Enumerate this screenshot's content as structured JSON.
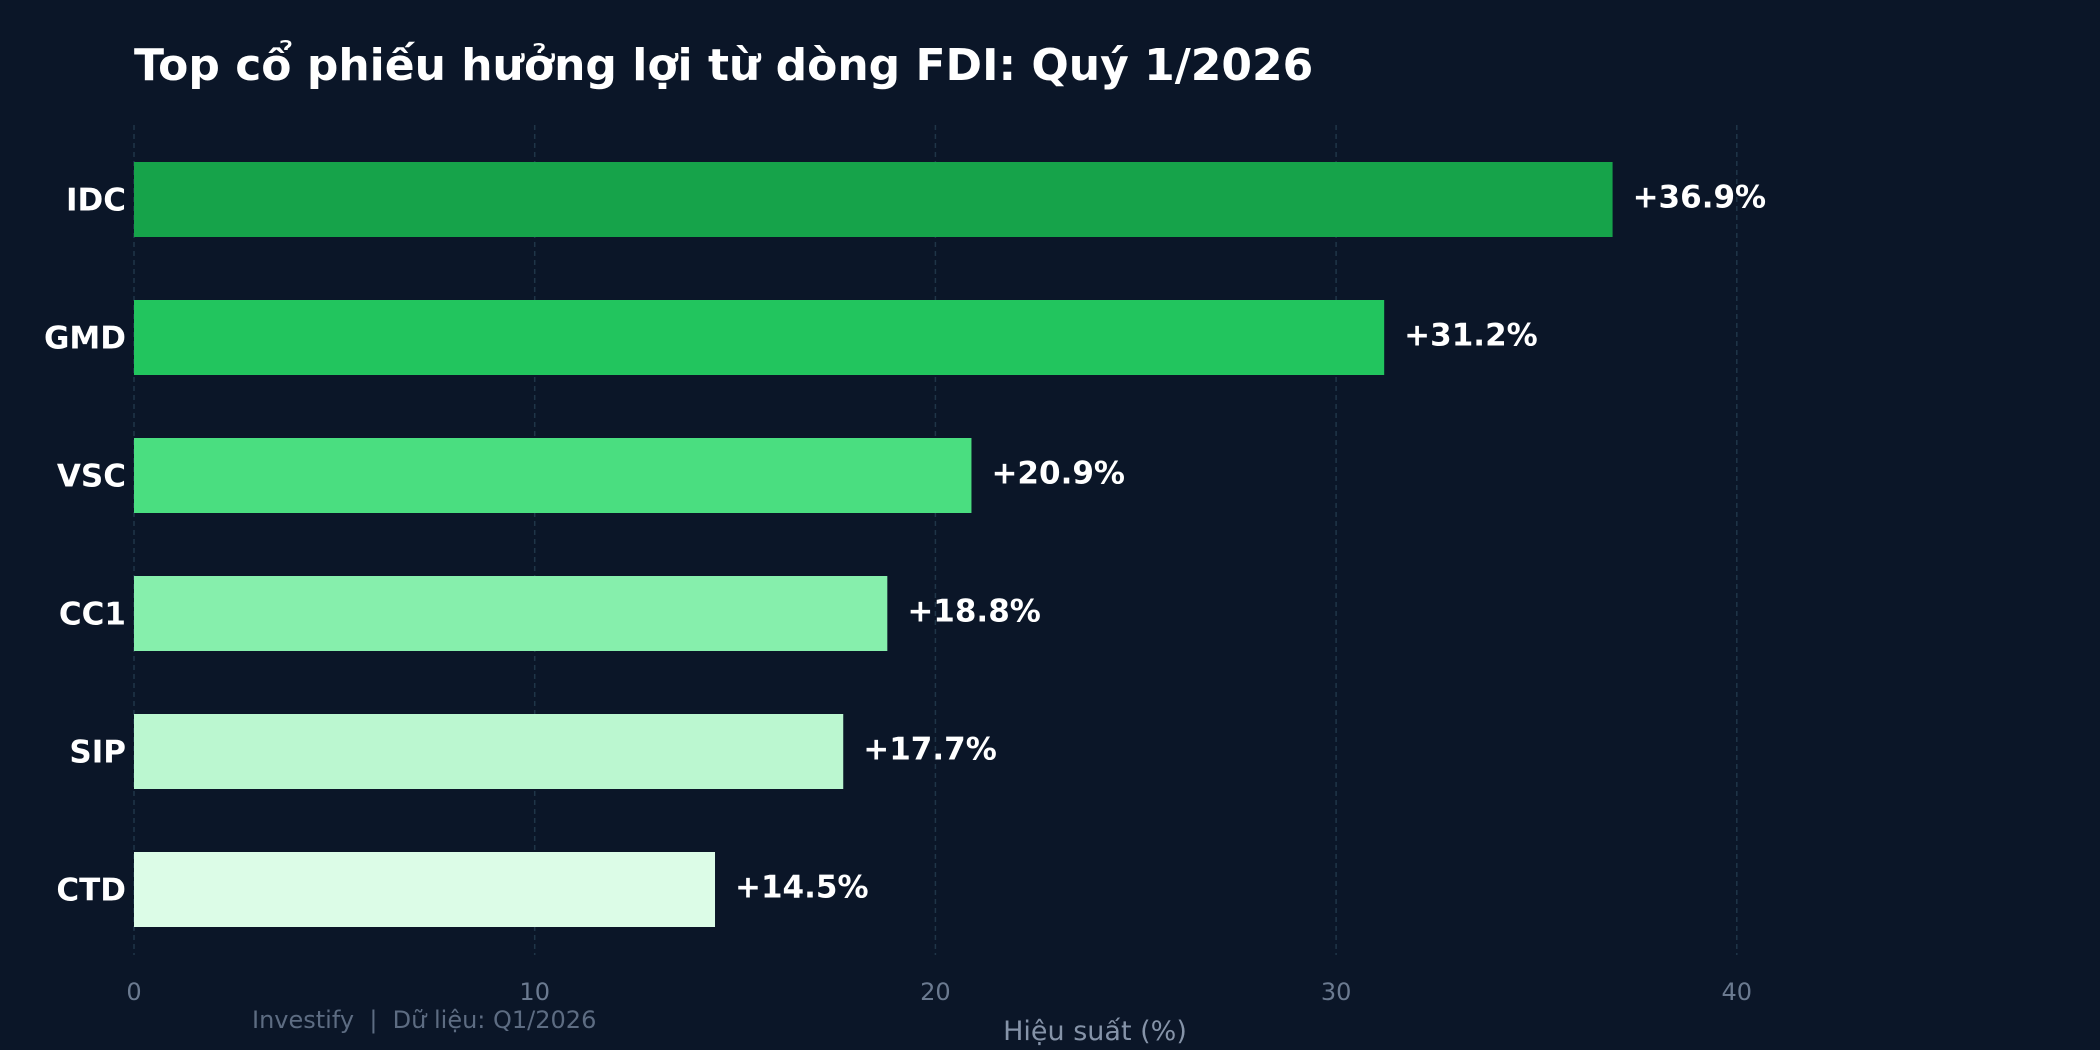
{
  "chart_data": {
    "type": "bar",
    "orientation": "horizontal",
    "title": "Top cổ phiếu hưởng lợi từ dòng FDI: Quý 1/2026",
    "categories": [
      "IDC",
      "GMD",
      "VSC",
      "CC1",
      "SIP",
      "CTD"
    ],
    "values": [
      36.9,
      31.2,
      20.9,
      18.8,
      17.7,
      14.5
    ],
    "data_labels": [
      "+36.9%",
      "+31.2%",
      "+20.9%",
      "+18.8%",
      "+17.7%",
      "+14.5%"
    ],
    "bar_colors": [
      "#16a34a",
      "#22c55e",
      "#4ade80",
      "#86efac",
      "#bbf7d0",
      "#dcfce7"
    ],
    "xlabel": "Hiệu suất (%)",
    "ylabel": "",
    "xlim": [
      0,
      48
    ],
    "xticks": [
      0,
      10,
      20,
      30,
      40
    ],
    "xtick_labels": [
      "0",
      "10",
      "20",
      "30",
      "40"
    ],
    "grid": "vertical dashed",
    "background": "#0b1628",
    "footer": "Investify  |  Dữ liệu: Q1/2026"
  }
}
